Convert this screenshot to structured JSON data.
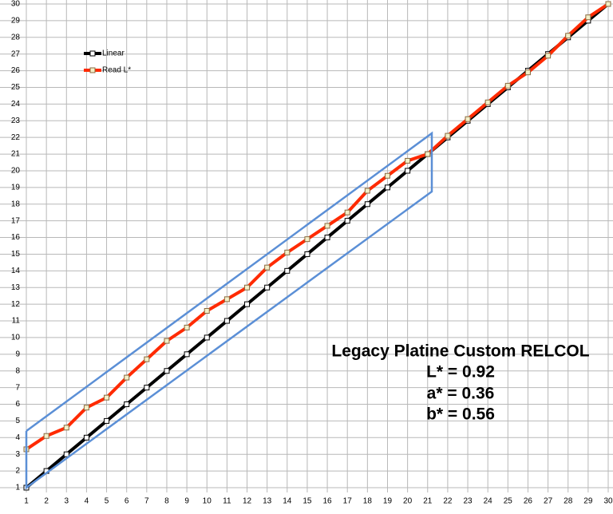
{
  "chart_data": {
    "type": "line",
    "x": [
      1,
      2,
      3,
      4,
      5,
      6,
      7,
      8,
      9,
      10,
      11,
      12,
      13,
      14,
      15,
      16,
      17,
      18,
      19,
      20,
      21,
      22,
      23,
      24,
      25,
      26,
      27,
      28,
      29,
      30
    ],
    "series": [
      {
        "name": "Linear",
        "color": "#000000",
        "marker_color": "#ffffff",
        "values": [
          1,
          2,
          3,
          4,
          5,
          6,
          7,
          8,
          9,
          10,
          11,
          12,
          13,
          14,
          15,
          16,
          17,
          18,
          19,
          20,
          21,
          22,
          23,
          24,
          25,
          26,
          27,
          28,
          29,
          30
        ]
      },
      {
        "name": "Read L*",
        "color": "#ff2a00",
        "marker_color": "#f4f0c8",
        "values": [
          3.3,
          4.1,
          4.6,
          5.8,
          6.4,
          7.6,
          8.7,
          9.8,
          10.6,
          11.6,
          12.3,
          13.0,
          14.2,
          15.1,
          15.9,
          16.7,
          17.5,
          18.8,
          19.7,
          20.6,
          21.0,
          22.1,
          23.1,
          24.1,
          25.1,
          25.9,
          26.9,
          28.1,
          29.2,
          30
        ]
      }
    ],
    "xlim": [
      1,
      30
    ],
    "ylim": [
      1,
      30
    ],
    "xticks": [
      1,
      2,
      3,
      4,
      5,
      6,
      7,
      8,
      9,
      10,
      11,
      12,
      13,
      14,
      15,
      16,
      17,
      18,
      19,
      20,
      21,
      22,
      23,
      24,
      25,
      26,
      27,
      28,
      29,
      30
    ],
    "yticks": [
      1,
      2,
      3,
      4,
      5,
      6,
      7,
      8,
      9,
      10,
      11,
      12,
      13,
      14,
      15,
      16,
      17,
      18,
      19,
      20,
      21,
      22,
      23,
      24,
      25,
      26,
      27,
      28,
      29,
      30
    ],
    "grid": true,
    "legend": "upper left",
    "annotations": [
      "Legacy Platine Custom RELCOL",
      "L* = 0.92",
      "a* = 0.36",
      "b* = 0.56"
    ]
  }
}
